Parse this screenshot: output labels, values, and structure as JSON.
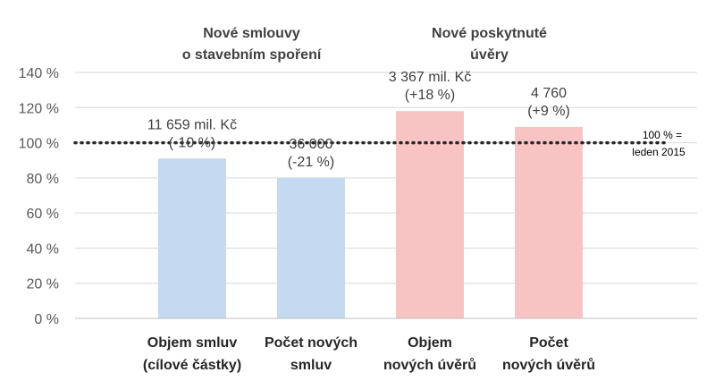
{
  "chart_data": {
    "type": "bar",
    "categories": [
      [
        "Objem smluv",
        "(cílové částky)"
      ],
      [
        "Počet  nových",
        "smluv"
      ],
      [
        "Objem",
        "nových úvěrů"
      ],
      [
        "Počet",
        "nových úvěrů"
      ]
    ],
    "values": [
      91,
      80,
      118,
      109
    ],
    "bar_colors": [
      "#c5d9f1",
      "#c5d9f1",
      "#f8c3c3",
      "#f8c3c3"
    ],
    "data_labels": [
      [
        "11 659 mil. Kč",
        "(-10 %)"
      ],
      [
        "36 000",
        "(-21 %)"
      ],
      [
        "3 367 mil. Kč",
        "(+18 %)"
      ],
      [
        "4 760",
        "(+9 %)"
      ]
    ],
    "ylim": [
      0,
      140
    ],
    "y_ticks": [
      "0 %",
      "20 %",
      "40 %",
      "60 %",
      "80 %",
      "100 %",
      "120 %",
      "140 %"
    ],
    "group_titles": [
      [
        "Nové smlouvy",
        "o stavebním spoření"
      ],
      [
        "Nové poskytnuté",
        "úvěry"
      ]
    ],
    "reference_line": {
      "value": 100,
      "label": [
        "100 % =",
        "leden 2015"
      ],
      "color": "#262626"
    },
    "gridlines": true
  }
}
